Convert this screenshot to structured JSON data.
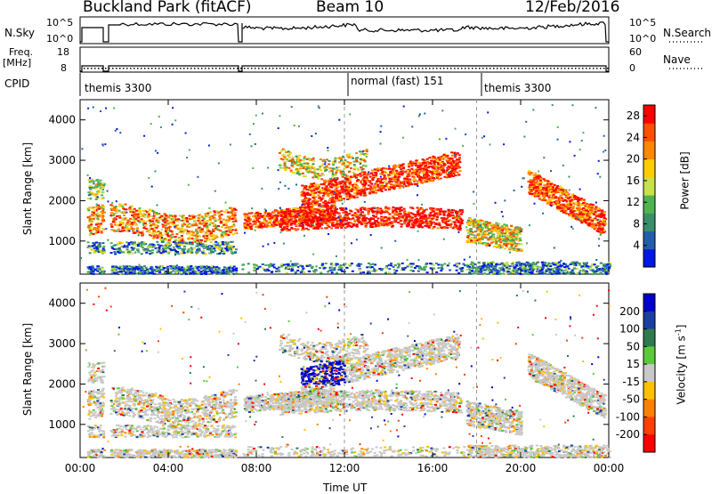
{
  "header": {
    "site_title": "Buckland Park (fitACF)",
    "beam": "Beam 10",
    "date": "12/Feb/2016"
  },
  "left_labels": {
    "nsky": "N.Sky",
    "freq": "Freq.",
    "freq_unit": "[MHz]",
    "cpid": "CPID"
  },
  "right_labels": {
    "nsearch": "N.Search",
    "nave": "Nave"
  },
  "ticks": {
    "nsky_top": "10^5",
    "nsky_bottom": "10^0",
    "freq_top": "18",
    "freq_bottom": "8",
    "nave_top": "60",
    "nave_bottom": "0"
  },
  "cpid_modes": [
    {
      "label": "themis 3300"
    },
    {
      "label": "normal (fast) 151"
    },
    {
      "label": "themis 3300"
    }
  ],
  "colors": {
    "power_scale": [
      "#0018e6",
      "#235cad",
      "#3a8f6a",
      "#4fb34f",
      "#c8e04a",
      "#ffcc00",
      "#ff8800",
      "#ff5000",
      "#ff0000"
    ],
    "velocity_scale": [
      "#0000cc",
      "#1a3fa0",
      "#2e7a4d",
      "#5cc83c",
      "#c8c8c8",
      "#ffc000",
      "#ff8000",
      "#ff4000",
      "#ff0000"
    ]
  },
  "chart_data": [
    {
      "type": "heatmap",
      "title": "",
      "ylabel": "Slant Range [km]",
      "xlabel": "",
      "x": [
        "00:00",
        "04:00",
        "08:00",
        "12:00",
        "16:00",
        "20:00",
        "00:00"
      ],
      "yticks": [
        "1000",
        "2000",
        "3000",
        "4000"
      ],
      "xlim": [
        0,
        24
      ],
      "ylim": [
        180,
        4500
      ],
      "colorbar": {
        "label": "Power [dB]",
        "ticks": [
          "4",
          "8",
          "12",
          "16",
          "20",
          "24",
          "28"
        ],
        "range": [
          0,
          30
        ]
      }
    },
    {
      "type": "heatmap",
      "title": "",
      "ylabel": "Slant Range [km]",
      "xlabel": "Time UT",
      "x": [
        "00:00",
        "04:00",
        "08:00",
        "12:00",
        "16:00",
        "20:00",
        "00:00"
      ],
      "yticks": [
        "1000",
        "2000",
        "3000",
        "4000"
      ],
      "xlim": [
        0,
        24
      ],
      "ylim": [
        180,
        4500
      ],
      "colorbar": {
        "label": "Velocity [m s^-1]",
        "ticks": [
          "200",
          "100",
          "50",
          "15",
          "-15",
          "-50",
          "-100",
          "-200"
        ],
        "range": [
          -250,
          250
        ]
      }
    }
  ]
}
